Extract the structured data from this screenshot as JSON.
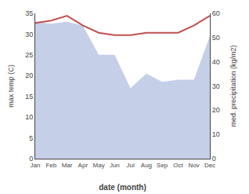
{
  "chart_data": {
    "type": "area",
    "categories": [
      "Jan",
      "Feb",
      "Mar",
      "Apr",
      "May",
      "Jun",
      "Jul",
      "Aug",
      "Sep",
      "Oct",
      "Nov",
      "Dec"
    ],
    "series": [
      {
        "type": "area",
        "color": "#c5cfe8",
        "values": [
          33,
          32.5,
          33,
          32,
          25,
          25,
          17,
          20.5,
          18.5,
          19,
          19,
          29.5
        ]
      },
      {
        "type": "line",
        "color": "#c0504d",
        "axis": "y2",
        "values": [
          56,
          57,
          59,
          55,
          52,
          51,
          51,
          52,
          52,
          52,
          55,
          59
        ]
      }
    ],
    "xlabel": "date (month)",
    "ylabel": "max temp (C)",
    "y2label": "med. precipitation (kg/m2)",
    "ylim": [
      0,
      35
    ],
    "yticks": [
      0,
      5,
      10,
      15,
      20,
      25,
      30,
      35
    ],
    "y2lim": [
      0,
      60
    ],
    "y2ticks": [
      0,
      10,
      20,
      30,
      40,
      50,
      60
    ],
    "grid": false
  }
}
